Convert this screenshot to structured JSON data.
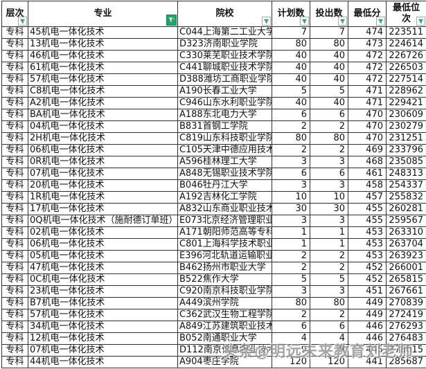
{
  "header": {
    "columns": [
      {
        "key": "level",
        "label": "层次",
        "filter": "dropdown"
      },
      {
        "key": "major",
        "label": "专业",
        "filter": "active"
      },
      {
        "key": "college",
        "label": "院校",
        "filter": "dropdown"
      },
      {
        "key": "plan",
        "label": "计划数",
        "filter": "dropdown"
      },
      {
        "key": "cast",
        "label": "投出数",
        "filter": "dropdown"
      },
      {
        "key": "score",
        "label": "最低分",
        "filter": "dropdown"
      },
      {
        "key": "rank",
        "label": "最低位次",
        "filter": "dropdown"
      }
    ]
  },
  "rows": [
    {
      "level": "专科",
      "major": "45机电一体化技术",
      "college": "C044上海第二工业大学",
      "plan": "7",
      "cast": "7",
      "score": "474",
      "rank": "223511"
    },
    {
      "level": "专科",
      "major": "13机电一体化技术",
      "college": "D323济南职业学院",
      "plan": "80",
      "cast": "80",
      "score": "473",
      "rank": "224614"
    },
    {
      "level": "专科",
      "major": "46机电一体化技术",
      "college": "C330莱芜职业技术学院",
      "plan": "40",
      "cast": "40",
      "score": "472",
      "rank": "226726"
    },
    {
      "level": "专科",
      "major": "61机电一体化技术",
      "college": "C441聊城职业技术学院",
      "plan": "40",
      "cast": "40",
      "score": "472",
      "rank": "226503"
    },
    {
      "level": "专科",
      "major": "57机电一体化技术",
      "college": "D388潍坊工商职业学院",
      "plan": "40",
      "cast": "40",
      "score": "472",
      "rank": "227514"
    },
    {
      "level": "专科",
      "major": "C8机电一体化技术",
      "college": "A190长春工业大学",
      "plan": "5",
      "cast": "5",
      "score": "471",
      "rank": "228962"
    },
    {
      "level": "专科",
      "major": "A2机电一体化技术",
      "college": "C946山东水利职业学院",
      "plan": "40",
      "cast": "40",
      "score": "471",
      "rank": "229421"
    },
    {
      "level": "专科",
      "major": "BA机电一体化技术",
      "college": "A188东北电力大学",
      "plan": "6",
      "cast": "6",
      "score": "470",
      "rank": "230609"
    },
    {
      "level": "专科",
      "major": "04机电一体化技术",
      "college": "B831首钢工学院",
      "plan": "2",
      "cast": "2",
      "score": "470",
      "rank": "230279"
    },
    {
      "level": "专科",
      "major": "2H机电一体化技术",
      "college": "C819山东科技职业学院",
      "plan": "80",
      "cast": "80",
      "score": "470",
      "rank": "231251"
    },
    {
      "level": "专科",
      "major": "06机电一体化技术",
      "college": "C105天津中德应用技术",
      "plan": "2",
      "cast": "2",
      "score": "469",
      "rank": "233796"
    },
    {
      "level": "专科",
      "major": "0R机电一体化技术",
      "college": "A596桂林理工大学",
      "plan": "3",
      "cast": "3",
      "score": "468",
      "rank": "235085"
    },
    {
      "level": "专科",
      "major": "07机电一体化技术",
      "college": "A848无锡职业技术学院",
      "plan": "6",
      "cast": "6",
      "score": "461",
      "rank": "248313"
    },
    {
      "level": "专科",
      "major": "20机电一体化技术",
      "college": "B046牡丹江大学",
      "plan": "3",
      "cast": "3",
      "score": "458",
      "rank": "254337"
    },
    {
      "level": "专科",
      "major": "1R机电一体化技术",
      "college": "A192吉林化工学院",
      "plan": "10",
      "cast": "10",
      "score": "457",
      "rank": "255832"
    },
    {
      "level": "专科",
      "major": "17机电一体化技术",
      "college": "A832山东商业职业技术",
      "plan": "30",
      "cast": "30",
      "score": "455",
      "rank": "260281"
    },
    {
      "level": "专科",
      "major": "0Q机电一体化技术（施耐德订单班）",
      "college": "E073北京经济管理职业",
      "plan": "3",
      "cast": "3",
      "score": "455",
      "rank": "259567"
    },
    {
      "level": "专科",
      "major": "02机电一体化技术",
      "college": "A171朝阳师范高等专科",
      "plan": "1",
      "cast": "1",
      "score": "453",
      "rank": "263310"
    },
    {
      "level": "专科",
      "major": "06机电一体化技术",
      "college": "C801上海科学技术职业",
      "plan": "1",
      "cast": "1",
      "score": "453",
      "rank": "263704"
    },
    {
      "level": "专科",
      "major": "05机电一体化技术",
      "college": "E396河北轨道运输职业",
      "plan": "2",
      "cast": "2",
      "score": "453",
      "rank": "263923"
    },
    {
      "level": "专科",
      "major": "47机电一体化技术",
      "college": "B462扬州市职业大学",
      "plan": "2",
      "cast": "2",
      "score": "452",
      "rank": "266001"
    },
    {
      "level": "专科",
      "major": "0C机电一体化技术",
      "college": "B522焦作大学",
      "plan": "5",
      "cast": "5",
      "score": "452",
      "rank": "265815"
    },
    {
      "level": "专科",
      "major": "23机电一体化技术",
      "college": "C920南京科技职业学院",
      "plan": "3",
      "cast": "3",
      "score": "451",
      "rank": "267661"
    },
    {
      "level": "专科",
      "major": "B7机电一体化技术",
      "college": "A449滨州学院",
      "plan": "80",
      "cast": "80",
      "score": "449",
      "rank": "270839"
    },
    {
      "level": "专科",
      "major": "57机电一体化技术",
      "college": "C362武汉生物工程学院",
      "plan": "2",
      "cast": "2",
      "score": "449",
      "rank": "272419"
    },
    {
      "level": "专科",
      "major": "34机电一体化技术",
      "college": "A849江苏建筑职业技术",
      "plan": "6",
      "cast": "6",
      "score": "446",
      "rank": "276293"
    },
    {
      "level": "专科",
      "major": "12机电一体化技术",
      "college": "B052南通职业大学",
      "plan": "4",
      "cast": "4",
      "score": "446",
      "rank": "276483"
    },
    {
      "level": "专科",
      "major": "07机电一体化技术",
      "college": "D112南京信息职业技术",
      "plan": "9",
      "cast": "9",
      "score": "445",
      "rank": "278015"
    },
    {
      "level": "专科",
      "major": "44机电一体化技术",
      "college": "A904枣庄学院",
      "plan": "120",
      "cast": "120",
      "score": "441",
      "rank": "285687"
    }
  ],
  "watermark": {
    "text": "头条@明远未来教育刘老师"
  },
  "colors": {
    "filter_active": "#21a567",
    "filter_arrow": "#21a567",
    "grid": "#2e2e2e",
    "watermark": "#909090"
  }
}
